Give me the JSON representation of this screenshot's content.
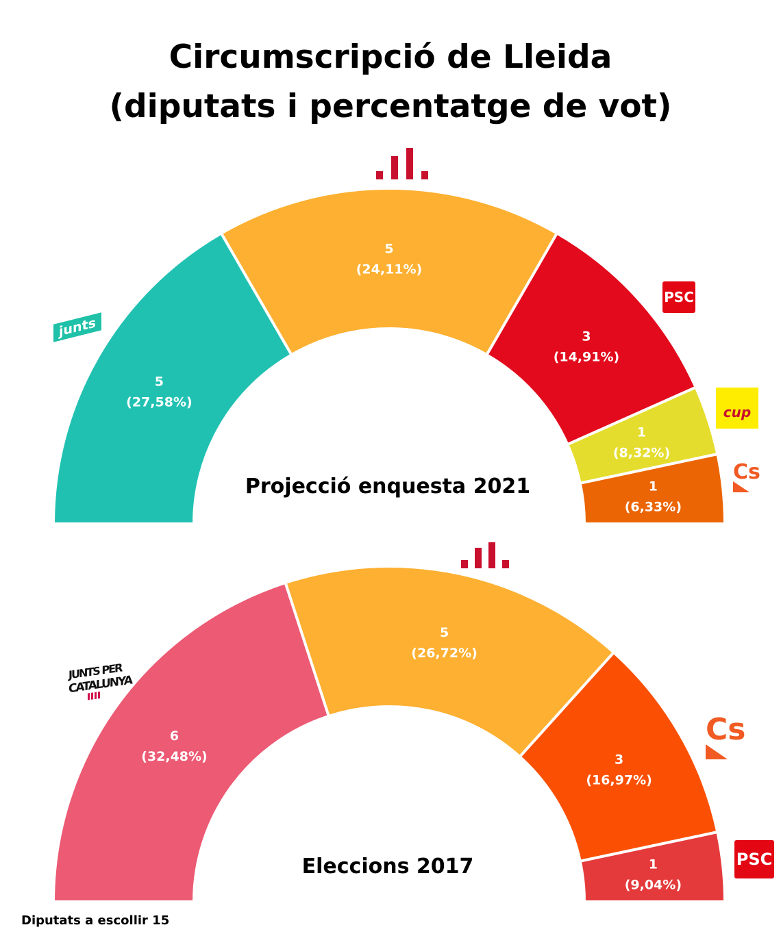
{
  "title_line1": "Circumscripció de Lleida",
  "title_line2": "(diputats i percentatge de vot)",
  "footer": "Diputats a escollir 15",
  "logos": {
    "psc": "PSC",
    "junts": "junts",
    "cup": "cup",
    "cs": "Cs",
    "jxc_line1": "JUNTS PER",
    "jxc_line2": "CATALUNYA"
  },
  "chart_data": [
    {
      "type": "pie",
      "subtype": "half-donut",
      "title": "Projecció enquesta 2021",
      "total_seats": 15,
      "series": [
        {
          "party": "Junts",
          "seats": 5,
          "pct_label": "(27,58%)",
          "pct": 27.58,
          "color": "#21c1b2"
        },
        {
          "party": "ERC",
          "seats": 5,
          "pct_label": "(24,11%)",
          "pct": 24.11,
          "color": "#fdb031"
        },
        {
          "party": "PSC",
          "seats": 3,
          "pct_label": "(14,91%)",
          "pct": 14.91,
          "color": "#e20a1c"
        },
        {
          "party": "CUP",
          "seats": 1,
          "pct_label": "(8,32%)",
          "pct": 8.32,
          "color": "#e5dd2d"
        },
        {
          "party": "Cs",
          "seats": 1,
          "pct_label": "(6,33%)",
          "pct": 6.33,
          "color": "#eb6504"
        }
      ]
    },
    {
      "type": "pie",
      "subtype": "half-donut",
      "title": "Eleccions 2017",
      "total_seats": 15,
      "series": [
        {
          "party": "JxCat",
          "seats": 6,
          "pct_label": "(32,48%)",
          "pct": 32.48,
          "color": "#ec5a74"
        },
        {
          "party": "ERC",
          "seats": 5,
          "pct_label": "(26,72%)",
          "pct": 26.72,
          "color": "#fdb031"
        },
        {
          "party": "Cs",
          "seats": 3,
          "pct_label": "(16,97%)",
          "pct": 16.97,
          "color": "#fb5004"
        },
        {
          "party": "PSC",
          "seats": 1,
          "pct_label": "(9,04%)",
          "pct": 9.04,
          "color": "#e53a3b"
        }
      ]
    }
  ]
}
